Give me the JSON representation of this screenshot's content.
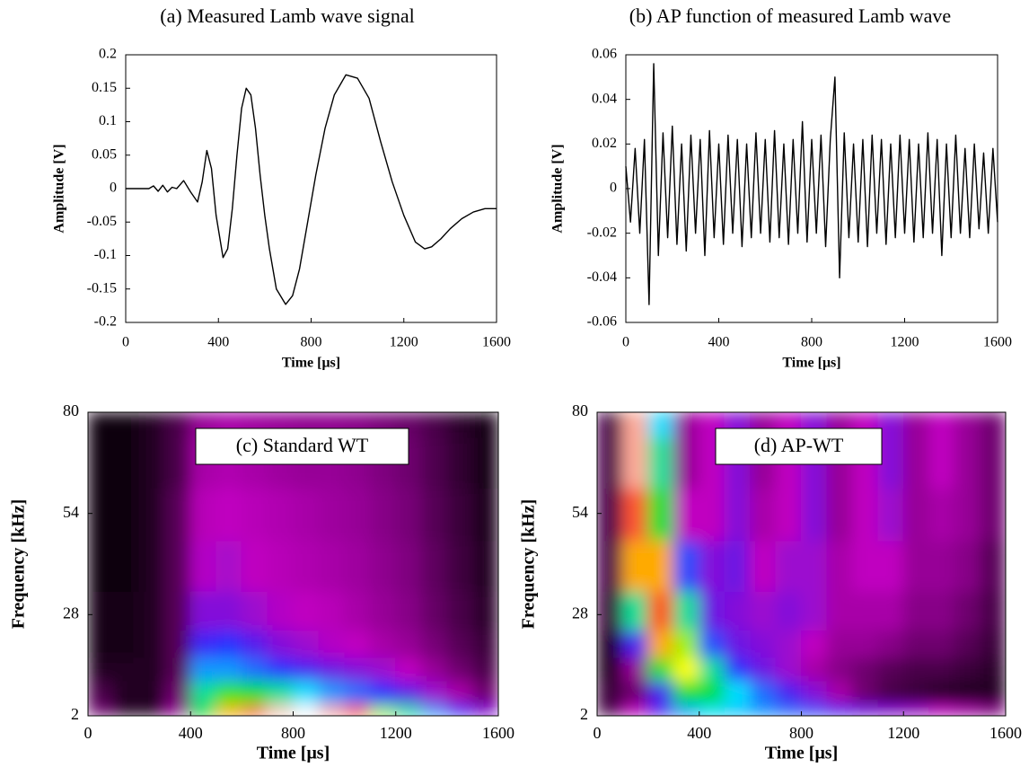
{
  "chart_data": [
    {
      "type": "line",
      "title": "(a) Measured Lamb wave signal",
      "xlabel": "Time [μs]",
      "ylabel": "Amplitude [V]",
      "x": [
        0,
        50,
        100,
        120,
        140,
        160,
        180,
        200,
        220,
        250,
        280,
        310,
        330,
        350,
        370,
        390,
        420,
        440,
        460,
        480,
        500,
        520,
        540,
        560,
        580,
        600,
        620,
        650,
        690,
        720,
        750,
        780,
        820,
        860,
        900,
        950,
        1000,
        1050,
        1100,
        1150,
        1200,
        1250,
        1290,
        1320,
        1360,
        1400,
        1450,
        1500,
        1550,
        1600
      ],
      "series": [
        {
          "color": "#000000",
          "values": [
            0,
            0,
            0,
            0.004,
            -0.004,
            0.005,
            -0.005,
            0.002,
            0,
            0.012,
            -0.005,
            -0.02,
            0.01,
            0.057,
            0.03,
            -0.04,
            -0.103,
            -0.09,
            -0.03,
            0.05,
            0.12,
            0.15,
            0.14,
            0.09,
            0.02,
            -0.04,
            -0.09,
            -0.15,
            -0.173,
            -0.16,
            -0.12,
            -0.06,
            0.02,
            0.09,
            0.14,
            0.17,
            0.165,
            0.135,
            0.07,
            0.01,
            -0.04,
            -0.08,
            -0.09,
            -0.087,
            -0.075,
            -0.06,
            -0.045,
            -0.035,
            -0.03,
            -0.03
          ]
        }
      ],
      "xlim": [
        0,
        1600
      ],
      "xticks": [
        0,
        400,
        800,
        1200,
        1600
      ],
      "ylim": [
        -0.2,
        0.2
      ],
      "yticks": [
        0.2,
        0.15,
        0.1,
        0.05,
        0,
        -0.05,
        -0.1,
        -0.15,
        -0.2
      ]
    },
    {
      "type": "line",
      "title": "(b) AP function of measured Lamb wave",
      "xlabel": "Time [μs]",
      "ylabel": "Amplitude [V]",
      "x": [
        0,
        20,
        40,
        60,
        80,
        100,
        120,
        140,
        160,
        180,
        200,
        220,
        240,
        260,
        280,
        300,
        320,
        340,
        360,
        380,
        400,
        420,
        440,
        460,
        480,
        500,
        520,
        540,
        560,
        580,
        600,
        620,
        640,
        660,
        680,
        700,
        720,
        740,
        760,
        780,
        800,
        820,
        840,
        860,
        880,
        900,
        920,
        940,
        960,
        980,
        1000,
        1020,
        1040,
        1060,
        1080,
        1100,
        1120,
        1140,
        1160,
        1180,
        1200,
        1220,
        1240,
        1260,
        1280,
        1300,
        1320,
        1340,
        1360,
        1380,
        1400,
        1420,
        1440,
        1460,
        1480,
        1500,
        1520,
        1540,
        1560,
        1580,
        1600
      ],
      "series": [
        {
          "color": "#000000",
          "values": [
            0.01,
            -0.015,
            0.018,
            -0.02,
            0.022,
            -0.052,
            0.056,
            -0.03,
            0.025,
            -0.022,
            0.028,
            -0.025,
            0.02,
            -0.028,
            0.024,
            -0.02,
            0.022,
            -0.03,
            0.026,
            -0.022,
            0.02,
            -0.025,
            0.024,
            -0.02,
            0.022,
            -0.026,
            0.02,
            -0.022,
            0.025,
            -0.02,
            0.022,
            -0.024,
            0.026,
            -0.022,
            0.02,
            -0.025,
            0.022,
            -0.02,
            0.03,
            -0.024,
            0.022,
            -0.02,
            0.024,
            -0.026,
            0.022,
            0.05,
            -0.04,
            0.025,
            -0.022,
            0.02,
            -0.024,
            0.022,
            -0.026,
            0.024,
            -0.02,
            0.022,
            -0.025,
            0.02,
            -0.022,
            0.024,
            -0.02,
            0.022,
            -0.024,
            0.02,
            -0.022,
            0.025,
            -0.02,
            0.022,
            -0.03,
            0.02,
            -0.022,
            0.024,
            -0.02,
            0.018,
            -0.022,
            0.02,
            -0.018,
            0.016,
            -0.02,
            0.018,
            -0.015
          ]
        }
      ],
      "xlim": [
        0,
        1600
      ],
      "xticks": [
        0,
        400,
        800,
        1200,
        1600
      ],
      "ylim": [
        -0.06,
        0.06
      ],
      "yticks": [
        0.06,
        0.04,
        0.02,
        0,
        -0.02,
        -0.04,
        -0.06
      ]
    },
    {
      "type": "heatmap",
      "annotation": "(c) Standard WT",
      "xlabel": "Time [μs]",
      "ylabel": "Frequency [kHz]",
      "colormap": [
        "#000000",
        "#5a005a",
        "#c000c0",
        "#2a2aff",
        "#00e0ff",
        "#00e000",
        "#ffff00",
        "#ff2a00",
        "#ffffff"
      ],
      "x": [
        50,
        150,
        250,
        350,
        450,
        550,
        650,
        750,
        850,
        950,
        1050,
        1150,
        1250,
        1350,
        1450,
        1550
      ],
      "y": [
        2,
        8,
        14,
        20,
        28,
        40,
        54,
        67,
        80
      ],
      "z": [
        [
          0.15,
          0.05,
          0.05,
          0.2,
          0.6,
          0.8,
          0.9,
          0.97,
          1.0,
          0.95,
          0.85,
          0.7,
          0.55,
          0.45,
          0.38,
          0.3
        ],
        [
          0.1,
          0.05,
          0.05,
          0.15,
          0.55,
          0.65,
          0.6,
          0.55,
          0.5,
          0.45,
          0.42,
          0.38,
          0.33,
          0.28,
          0.22,
          0.15
        ],
        [
          0.05,
          0.05,
          0.05,
          0.12,
          0.45,
          0.45,
          0.42,
          0.38,
          0.35,
          0.32,
          0.3,
          0.28,
          0.25,
          0.2,
          0.15,
          0.1
        ],
        [
          0.03,
          0.03,
          0.05,
          0.12,
          0.36,
          0.38,
          0.34,
          0.3,
          0.28,
          0.26,
          0.25,
          0.22,
          0.2,
          0.16,
          0.12,
          0.08
        ],
        [
          0.03,
          0.03,
          0.05,
          0.12,
          0.3,
          0.3,
          0.28,
          0.26,
          0.25,
          0.24,
          0.22,
          0.2,
          0.18,
          0.14,
          0.1,
          0.06
        ],
        [
          0.02,
          0.02,
          0.05,
          0.12,
          0.26,
          0.27,
          0.25,
          0.24,
          0.23,
          0.22,
          0.21,
          0.19,
          0.17,
          0.13,
          0.09,
          0.05
        ],
        [
          0.02,
          0.02,
          0.05,
          0.12,
          0.24,
          0.25,
          0.24,
          0.23,
          0.22,
          0.21,
          0.2,
          0.18,
          0.16,
          0.12,
          0.08,
          0.04
        ],
        [
          0.02,
          0.02,
          0.05,
          0.1,
          0.22,
          0.23,
          0.22,
          0.21,
          0.2,
          0.2,
          0.19,
          0.17,
          0.15,
          0.11,
          0.07,
          0.03
        ],
        [
          0.02,
          0.02,
          0.05,
          0.1,
          0.2,
          0.22,
          0.21,
          0.2,
          0.19,
          0.19,
          0.18,
          0.16,
          0.14,
          0.1,
          0.06,
          0.03
        ]
      ],
      "xlim": [
        0,
        1600
      ],
      "xticks": [
        0,
        400,
        800,
        1200,
        1600
      ],
      "ylim": [
        2,
        80
      ],
      "yticks": [
        2,
        28,
        54,
        80
      ]
    },
    {
      "type": "heatmap",
      "annotation": "(d) AP-WT",
      "xlabel": "Time [μs]",
      "ylabel": "Frequency [kHz]",
      "colormap": [
        "#000000",
        "#5a005a",
        "#c000c0",
        "#2a2aff",
        "#00e0ff",
        "#00e000",
        "#ffff00",
        "#ff2a00",
        "#ffffff"
      ],
      "x": [
        50,
        150,
        250,
        350,
        450,
        550,
        650,
        750,
        850,
        950,
        1050,
        1150,
        1250,
        1350,
        1450,
        1550
      ],
      "y": [
        2,
        8,
        14,
        20,
        28,
        40,
        54,
        67,
        80
      ],
      "z": [
        [
          0.1,
          0.25,
          0.35,
          0.45,
          0.5,
          0.48,
          0.45,
          0.42,
          0.4,
          0.36,
          0.32,
          0.3,
          0.28,
          0.25,
          0.22,
          0.18
        ],
        [
          0.08,
          0.15,
          0.35,
          0.6,
          0.6,
          0.5,
          0.42,
          0.35,
          0.3,
          0.22,
          0.15,
          0.1,
          0.08,
          0.06,
          0.05,
          0.05
        ],
        [
          0.05,
          0.2,
          0.6,
          0.75,
          0.55,
          0.38,
          0.32,
          0.28,
          0.22,
          0.18,
          0.15,
          0.12,
          0.1,
          0.1,
          0.08,
          0.06
        ],
        [
          0.05,
          0.35,
          0.8,
          0.7,
          0.4,
          0.32,
          0.3,
          0.28,
          0.25,
          0.2,
          0.2,
          0.18,
          0.15,
          0.15,
          0.12,
          0.08
        ],
        [
          0.08,
          0.55,
          0.85,
          0.55,
          0.32,
          0.3,
          0.28,
          0.3,
          0.28,
          0.22,
          0.22,
          0.22,
          0.18,
          0.18,
          0.15,
          0.1
        ],
        [
          0.1,
          0.8,
          0.8,
          0.4,
          0.3,
          0.32,
          0.25,
          0.28,
          0.28,
          0.22,
          0.25,
          0.25,
          0.2,
          0.2,
          0.18,
          0.12
        ],
        [
          0.1,
          0.9,
          0.6,
          0.25,
          0.25,
          0.3,
          0.22,
          0.25,
          0.3,
          0.2,
          0.25,
          0.28,
          0.2,
          0.22,
          0.2,
          0.15
        ],
        [
          0.1,
          0.95,
          0.55,
          0.2,
          0.25,
          0.3,
          0.2,
          0.25,
          0.3,
          0.2,
          0.25,
          0.3,
          0.2,
          0.25,
          0.2,
          0.15
        ],
        [
          0.1,
          0.95,
          0.5,
          0.2,
          0.25,
          0.3,
          0.2,
          0.25,
          0.3,
          0.2,
          0.25,
          0.3,
          0.2,
          0.25,
          0.2,
          0.15
        ]
      ],
      "xlim": [
        0,
        1600
      ],
      "xticks": [
        0,
        400,
        800,
        1200,
        1600
      ],
      "ylim": [
        2,
        80
      ],
      "yticks": [
        2,
        28,
        54,
        80
      ]
    }
  ]
}
